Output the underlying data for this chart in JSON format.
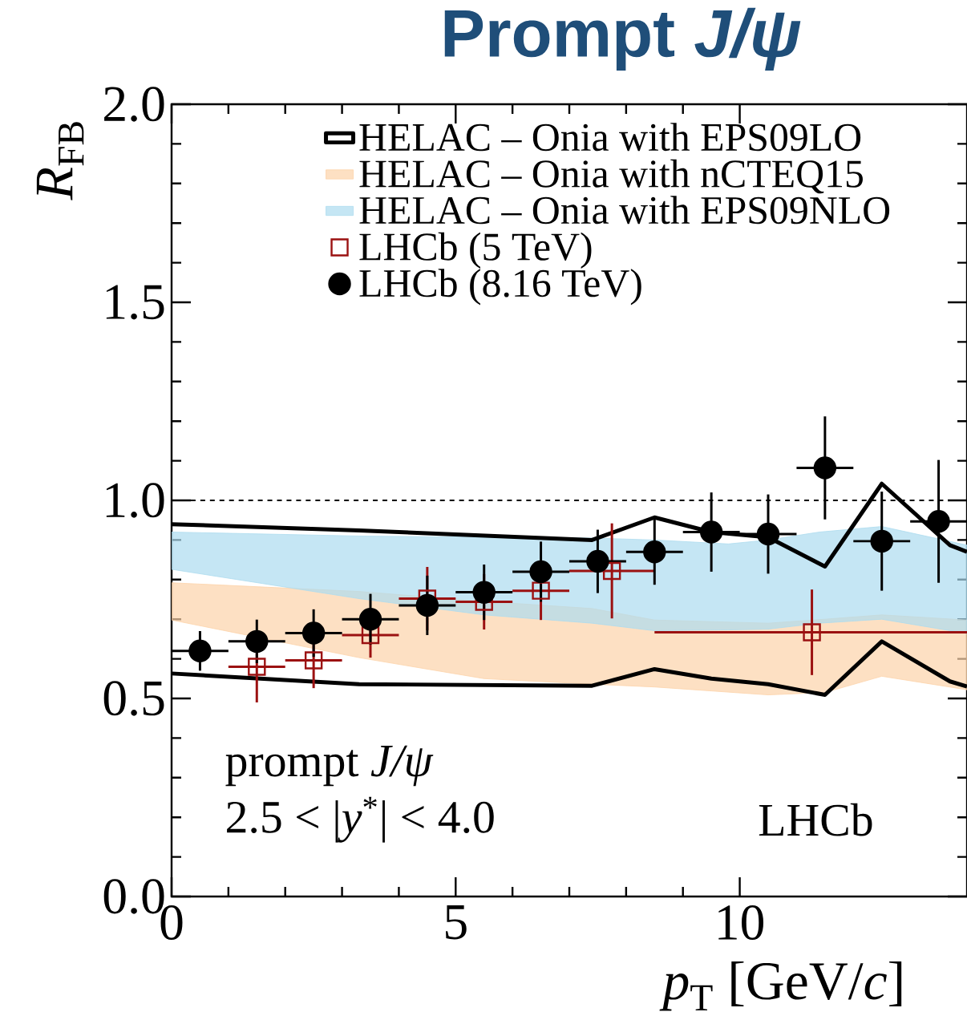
{
  "chart_data": {
    "type": "scatter",
    "title": "Prompt *J/ψ*",
    "xlabel": "*p*$_{T}$ [GeV/*c*]",
    "ylabel": "*R*$_{FB}$",
    "xlim": [
      0,
      14
    ],
    "ylim": [
      0,
      2
    ],
    "xticks": [
      0,
      5,
      10
    ],
    "yticks": [
      {
        "value": 0,
        "label": "0.0"
      },
      {
        "value": 0.5,
        "label": "0.5"
      },
      {
        "value": 1,
        "label": "1.0"
      },
      {
        "value": 1.5,
        "label": "1.5"
      },
      {
        "value": 2,
        "label": "2.0"
      }
    ],
    "legend": "top",
    "ref_lines": [
      {
        "axis": "y",
        "value": 1,
        "line_style": "dashed",
        "color": "#000000"
      }
    ],
    "annotations": [
      "prompt *J/ψ*",
      "2.5 < |*y*$^{*}$| < 4.0",
      "LHCb"
    ],
    "series": [
      {
        "name": "HELAC – Onia with EPS09LO",
        "type": "line",
        "color": "#000000",
        "x": [
          0,
          3.3,
          7.4,
          8.5,
          9.5,
          10.5,
          11.5,
          12.5,
          13.7,
          14
        ],
        "values": [
          0.94,
          0.924,
          0.9,
          0.957,
          0.92,
          0.907,
          0.833,
          1.042,
          0.887,
          0.87
        ]
      },
      {
        "type": "line",
        "color": "#000000",
        "x": [
          0,
          3.3,
          7.4,
          8.5,
          9.5,
          10.5,
          11.5,
          12.5,
          13.7,
          14
        ],
        "values": [
          0.563,
          0.536,
          0.532,
          0.574,
          0.55,
          0.536,
          0.509,
          0.644,
          0.543,
          0.53
        ]
      },
      {
        "name": "HELAC – Onia with nCTEQ15",
        "type": "area",
        "color": "#fcd3aa",
        "x": [
          0,
          3.3,
          5.5,
          7.4,
          8.5,
          10.5,
          11.5,
          12.5,
          14
        ],
        "values": [
          null,
          null,
          null,
          null,
          null,
          null,
          null,
          null,
          null
        ],
        "lower": [
          0.698,
          0.603,
          0.55,
          0.536,
          0.529,
          0.509,
          0.515,
          0.556,
          0.522
        ],
        "upper": [
          0.792,
          0.77,
          0.745,
          0.727,
          0.698,
          0.69,
          0.7,
          0.711,
          0.698
        ]
      },
      {
        "name": "HELAC – Onia with EPS09NLO",
        "type": "area",
        "color": "#addcef",
        "x": [
          0,
          3.3,
          5.5,
          7.4,
          8.5,
          9.8,
          10.5,
          11.4,
          12.5,
          14
        ],
        "values": [
          null,
          null,
          null,
          null,
          null,
          null,
          null,
          null,
          null,
          null
        ],
        "lower": [
          0.826,
          0.752,
          0.711,
          0.69,
          0.671,
          0.673,
          0.675,
          0.69,
          0.7,
          0.664
        ],
        "upper": [
          0.92,
          0.91,
          0.907,
          0.905,
          0.9,
          0.89,
          0.9,
          0.92,
          0.934,
          0.887
        ]
      },
      {
        "name": "LHCb (5 TeV)",
        "marker": "square",
        "color": "#9b1111",
        "x": [
          1.5,
          2.5,
          3.5,
          4.5,
          5.5,
          6.5,
          7.75,
          11.27
        ],
        "values": [
          0.58,
          0.596,
          0.66,
          0.752,
          0.744,
          0.772,
          0.822,
          0.667
        ],
        "errors": [
          0.09,
          0.07,
          0.057,
          0.08,
          0.07,
          0.074,
          0.12,
          0.108
        ],
        "xerrors": [
          0.5,
          0.5,
          0.5,
          0.5,
          0.5,
          0.5,
          [
            7,
            8.5
          ],
          [
            8.5,
            14
          ]
        ]
      },
      {
        "name": "LHCb (8.16 TeV)",
        "marker": "circle",
        "color": "#000000",
        "x": [
          0.5,
          1.5,
          2.5,
          3.5,
          4.5,
          5.5,
          6.5,
          7.5,
          8.5,
          9.5,
          10.5,
          11.5,
          12.5,
          13.5
        ],
        "values": [
          0.62,
          0.644,
          0.665,
          0.7,
          0.735,
          0.768,
          0.82,
          0.846,
          0.87,
          0.92,
          0.915,
          1.082,
          0.897,
          0.947
        ],
        "errors": [
          0.05,
          0.055,
          0.06,
          0.064,
          0.075,
          0.07,
          0.076,
          0.08,
          0.083,
          0.1,
          0.1,
          0.13,
          0.125,
          0.155
        ],
        "xerrors": [
          0.5,
          0.5,
          0.5,
          0.5,
          0.5,
          0.5,
          0.5,
          0.5,
          0.5,
          0.5,
          0.5,
          0.5,
          0.5,
          0.5
        ]
      }
    ]
  }
}
